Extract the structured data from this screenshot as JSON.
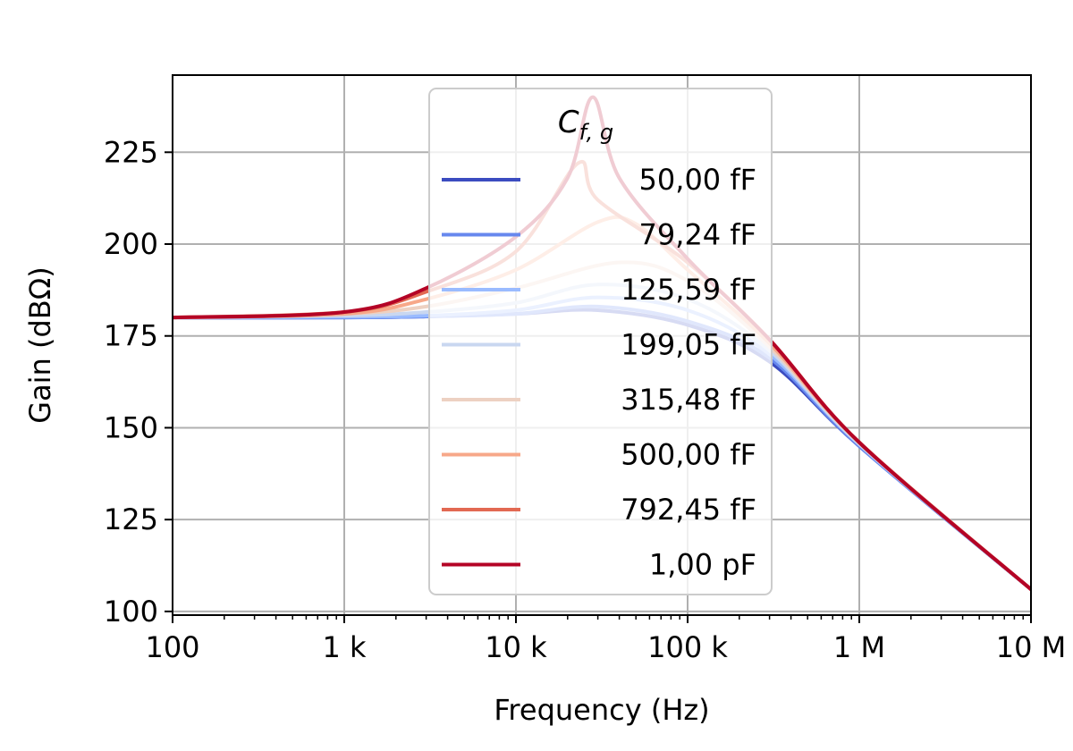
{
  "chart_data": {
    "type": "line",
    "xlabel": "Frequency (Hz)",
    "ylabel": "Gain (dBΩ)",
    "x_scale": "log",
    "xlim": [
      100,
      10000000
    ],
    "ylim": [
      99,
      246
    ],
    "x_ticks": [
      {
        "value": 100,
        "label": "100"
      },
      {
        "value": 1000,
        "label": "1 k"
      },
      {
        "value": 10000,
        "label": "10 k"
      },
      {
        "value": 100000,
        "label": "100 k"
      },
      {
        "value": 1000000,
        "label": "1 M"
      },
      {
        "value": 10000000,
        "label": "10 M"
      }
    ],
    "y_ticks": [
      {
        "value": 100,
        "label": "100"
      },
      {
        "value": 125,
        "label": "125"
      },
      {
        "value": 150,
        "label": "150"
      },
      {
        "value": 175,
        "label": "175"
      },
      {
        "value": 200,
        "label": "200"
      },
      {
        "value": 225,
        "label": "225"
      }
    ],
    "grid": true,
    "legend": {
      "title": "C_{f,g}",
      "title_main": "C",
      "title_sub": "f, g",
      "position": "upper-center"
    },
    "series": [
      {
        "name": "50,00 fF",
        "color": "#3b4cc0",
        "points": [
          [
            100,
            180
          ],
          [
            1000,
            180
          ],
          [
            3000,
            180.3
          ],
          [
            10000,
            181
          ],
          [
            30000,
            182
          ],
          [
            100000,
            178
          ],
          [
            300000,
            168
          ],
          [
            1000000,
            145
          ],
          [
            10000000,
            106
          ]
        ]
      },
      {
        "name": "79,24 fF",
        "color": "#6788ee",
        "points": [
          [
            100,
            180
          ],
          [
            1000,
            180
          ],
          [
            3000,
            180.3
          ],
          [
            10000,
            181
          ],
          [
            30000,
            183
          ],
          [
            100000,
            179
          ],
          [
            300000,
            169
          ],
          [
            1000000,
            145
          ],
          [
            10000000,
            106
          ]
        ]
      },
      {
        "name": "125,59 fF",
        "color": "#9abbff",
        "points": [
          [
            100,
            180
          ],
          [
            1000,
            180.2
          ],
          [
            3000,
            180.5
          ],
          [
            10000,
            182
          ],
          [
            30000,
            185.5
          ],
          [
            100000,
            182
          ],
          [
            300000,
            170
          ],
          [
            1000000,
            145.5
          ],
          [
            10000000,
            106
          ]
        ]
      },
      {
        "name": "199,05 fF",
        "color": "#c9d7f0",
        "points": [
          [
            100,
            180
          ],
          [
            1000,
            180.5
          ],
          [
            3000,
            181.5
          ],
          [
            10000,
            184
          ],
          [
            30000,
            189
          ],
          [
            100000,
            185
          ],
          [
            300000,
            171
          ],
          [
            1000000,
            145.5
          ],
          [
            10000000,
            106
          ]
        ]
      },
      {
        "name": "315,48 fF",
        "color": "#edd1c2",
        "points": [
          [
            100,
            180
          ],
          [
            1000,
            181
          ],
          [
            3000,
            183
          ],
          [
            10000,
            188
          ],
          [
            40000,
            195
          ],
          [
            100000,
            190
          ],
          [
            300000,
            172
          ],
          [
            1000000,
            146
          ],
          [
            10000000,
            106
          ]
        ]
      },
      {
        "name": "500,00 fF",
        "color": "#f7a889",
        "points": [
          [
            100,
            180
          ],
          [
            1000,
            181
          ],
          [
            3000,
            185
          ],
          [
            10000,
            193
          ],
          [
            30000,
            206
          ],
          [
            50000,
            205.5
          ],
          [
            100000,
            193
          ],
          [
            300000,
            173
          ],
          [
            1000000,
            146
          ],
          [
            10000000,
            106
          ]
        ]
      },
      {
        "name": "792,45 fF",
        "color": "#e26952",
        "points": [
          [
            100,
            180
          ],
          [
            1000,
            181.5
          ],
          [
            3000,
            187
          ],
          [
            10000,
            198
          ],
          [
            23000,
            222
          ],
          [
            30000,
            212
          ],
          [
            100000,
            195
          ],
          [
            300000,
            174
          ],
          [
            1000000,
            146
          ],
          [
            10000000,
            106
          ]
        ]
      },
      {
        "name": "1,00 pF",
        "color": "#b40426",
        "points": [
          [
            100,
            180
          ],
          [
            1000,
            181.5
          ],
          [
            3000,
            188
          ],
          [
            10000,
            202
          ],
          [
            20000,
            218
          ],
          [
            28000,
            240
          ],
          [
            40000,
            218
          ],
          [
            100000,
            196
          ],
          [
            300000,
            174
          ],
          [
            1000000,
            146
          ],
          [
            10000000,
            106
          ]
        ]
      }
    ]
  }
}
